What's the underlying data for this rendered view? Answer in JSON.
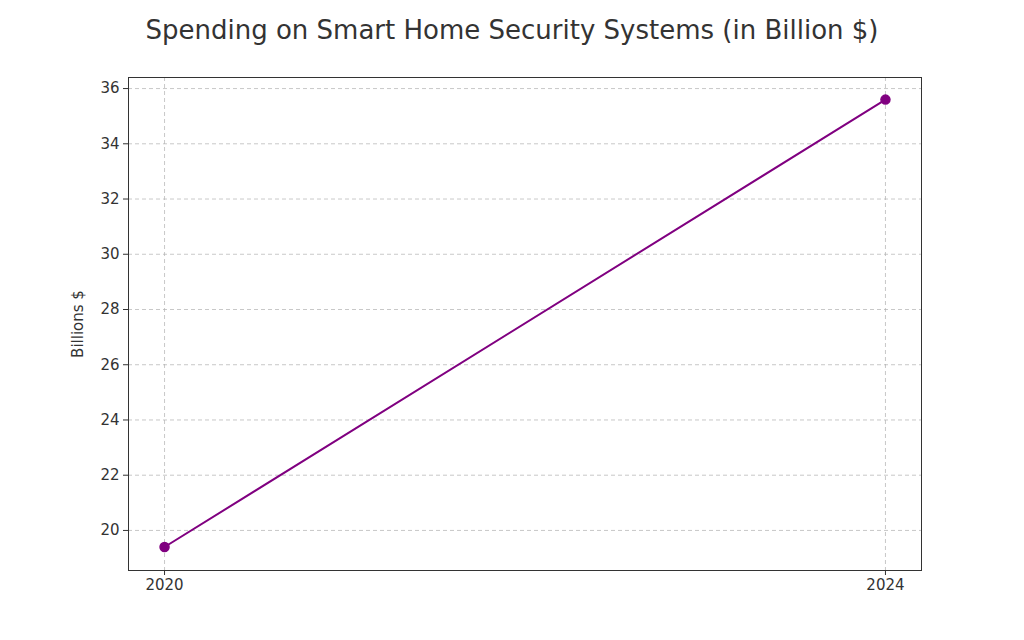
{
  "chart_data": {
    "type": "line",
    "title": "Spending on Smart Home Security Systems (in Billion $)",
    "y_label": "Billions $",
    "x": [
      2020,
      2024
    ],
    "values": [
      19.4,
      35.6
    ],
    "color": "#800080",
    "xlim": [
      2019.8,
      2024.2
    ],
    "xticks": [
      2020,
      2024
    ],
    "ylim": [
      18.55,
      36.4
    ],
    "yticks": [
      20,
      22,
      24,
      26,
      28,
      30,
      32,
      34,
      36
    ],
    "grid": true,
    "marker": "circle",
    "line_style": "solid"
  }
}
